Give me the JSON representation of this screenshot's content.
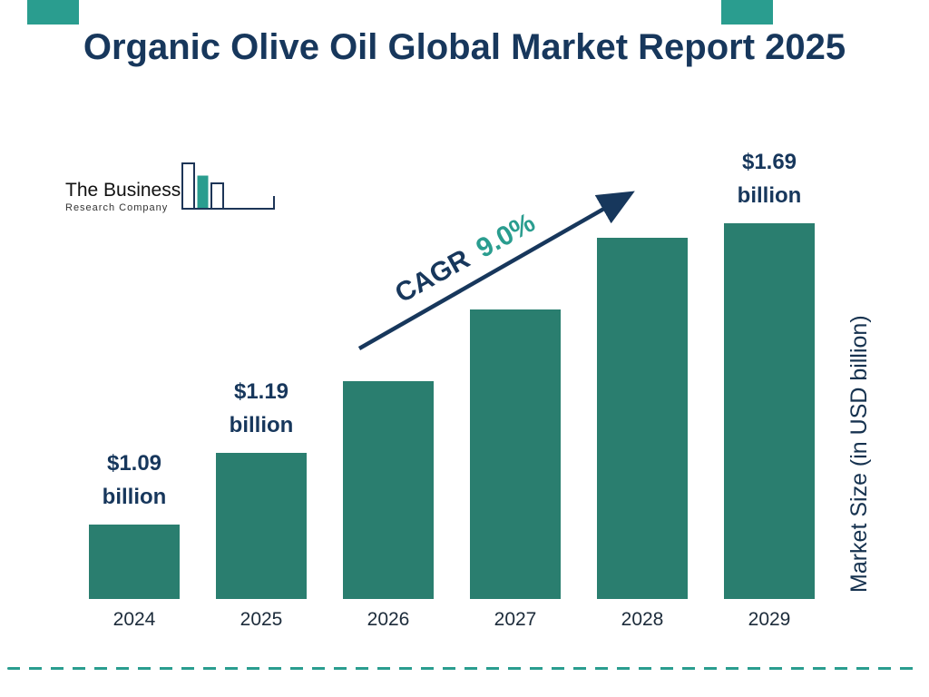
{
  "header": {
    "title": "Organic Olive Oil Global Market Report 2025"
  },
  "logo": {
    "line1": "The Business",
    "line2": "Research Company"
  },
  "chart_data": {
    "type": "bar",
    "title": "Organic Olive Oil Global Market Report 2025",
    "xlabel": "",
    "ylabel": "Market Size (in USD billion)",
    "categories": [
      "2024",
      "2025",
      "2026",
      "2027",
      "2028",
      "2029"
    ],
    "values": [
      1.09,
      1.19,
      1.3,
      1.41,
      1.54,
      1.69
    ],
    "bars": [
      {
        "year": "2024",
        "value": 1.09,
        "label": "$1.09\nbillion"
      },
      {
        "year": "2025",
        "value": 1.19,
        "label": "$1.19\nbillion"
      },
      {
        "year": "2026",
        "value": 1.3,
        "label": ""
      },
      {
        "year": "2027",
        "value": 1.41,
        "label": ""
      },
      {
        "year": "2028",
        "value": 1.54,
        "label": ""
      },
      {
        "year": "2029",
        "value": 1.69,
        "label": "$1.69\nbillion"
      }
    ],
    "cagr": {
      "label": "CAGR",
      "value": "9.0%"
    },
    "legend": [],
    "grid": false,
    "bar_color": "#2a7e6f"
  },
  "colors": {
    "navy": "#17375c",
    "bar_teal": "#2a7e6f",
    "accent_teal": "#2a9d8f"
  }
}
